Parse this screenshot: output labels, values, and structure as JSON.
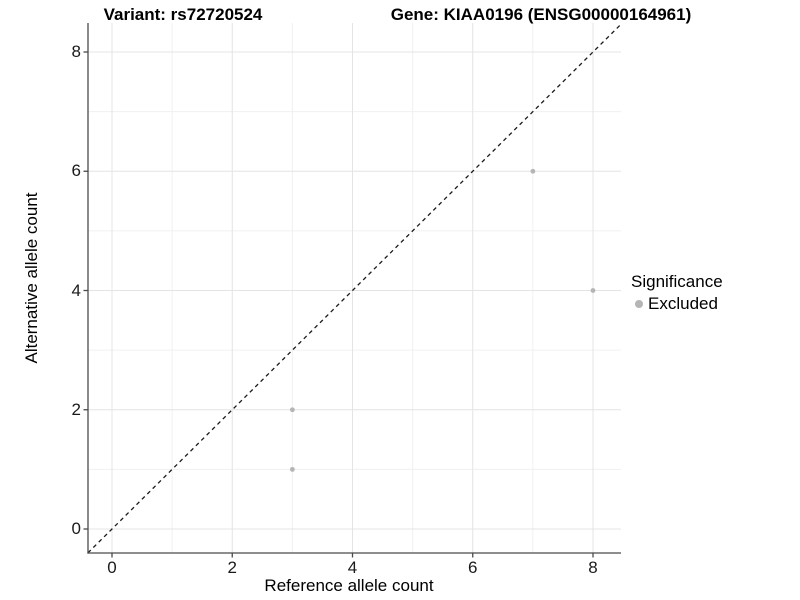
{
  "chart_data": {
    "type": "scatter",
    "title_left": "Variant: rs72720524",
    "title_right": "Gene: KIAA0196 (ENSG00000164961)",
    "xlabel": "Reference allele count",
    "ylabel": "Alternative allele count",
    "xlim": [
      -0.4,
      8.45
    ],
    "ylim": [
      -0.4,
      8.45
    ],
    "x_ticks": [
      0,
      2,
      4,
      6,
      8
    ],
    "y_ticks": [
      0,
      2,
      4,
      6,
      8
    ],
    "x_minor_gridlines": [
      1,
      3,
      5,
      7
    ],
    "y_minor_gridlines": [
      1,
      3,
      5,
      7
    ],
    "grid": "on",
    "legend_position": "right",
    "reference_line": {
      "type": "identity",
      "from": [
        -0.4,
        -0.4
      ],
      "to": [
        8.45,
        8.45
      ],
      "style": "dashed",
      "color": "#1a1a1a"
    },
    "series": [
      {
        "name": "Excluded",
        "marker": "circle",
        "color": "#b5b5b5",
        "points": [
          [
            3,
            1
          ],
          [
            3,
            2
          ],
          [
            7,
            6
          ],
          [
            8,
            4
          ]
        ]
      }
    ],
    "legend": {
      "title": "Significance",
      "items": [
        {
          "label": "Excluded",
          "color": "#b5b5b5",
          "marker": "circle"
        }
      ]
    },
    "colors": {
      "major_grid": "#e4e4e4",
      "minor_grid": "#f0f0f0",
      "axis_line": "#4a4a4a",
      "panel_background": "#ffffff"
    }
  }
}
